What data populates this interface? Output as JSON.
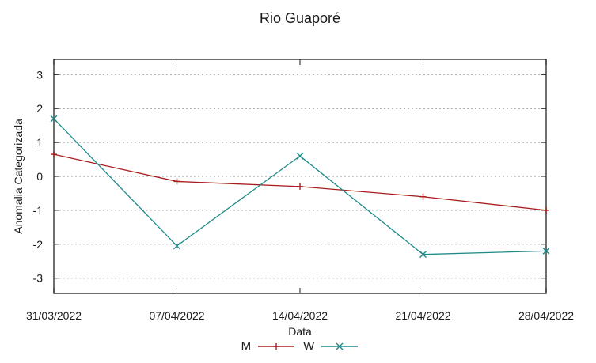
{
  "chart_data": {
    "type": "line",
    "title": "Rio Guaporé",
    "xlabel": "Data",
    "ylabel": "Anomalia Categorizada",
    "x_tick_labels": [
      "31/03/2022",
      "07/04/2022",
      "14/04/2022",
      "21/04/2022",
      "28/04/2022"
    ],
    "y_ticks": [
      3,
      2,
      1,
      0,
      -1,
      -2,
      -3
    ],
    "ylim": [
      -3.45,
      3.45
    ],
    "grid": "horizontal-dotted",
    "legend_position": "bottom-center",
    "axis_color": "#4d4d4d",
    "tick_color": "#1a1a1a",
    "grid_color": "#9a9a9a",
    "series": [
      {
        "name": "M",
        "color": "#a81c1c",
        "marker": "plus",
        "values": [
          0.65,
          -0.15,
          -0.3,
          -0.6,
          -1.0
        ]
      },
      {
        "name": "W",
        "color": "#1f8a8a",
        "marker": "cross",
        "values": [
          1.7,
          -2.05,
          0.6,
          -2.3,
          -2.2
        ]
      }
    ]
  }
}
